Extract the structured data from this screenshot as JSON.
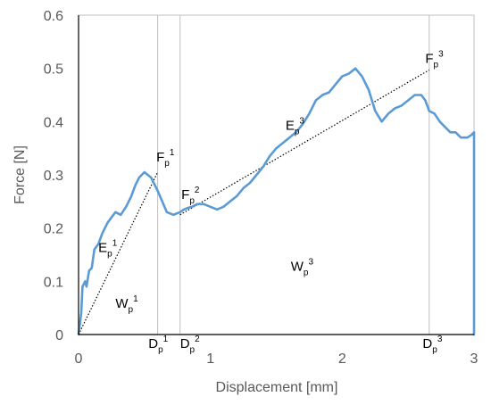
{
  "chart_data": {
    "type": "line",
    "title": "",
    "xlabel": "Displacement [mm]",
    "ylabel": "Force [N]",
    "xlim": [
      0,
      3
    ],
    "ylim": [
      0,
      0.6
    ],
    "x_ticks": [
      "0",
      "1",
      "2",
      "3"
    ],
    "y_ticks": [
      "0",
      "0.1",
      "0.2",
      "0.3",
      "0.4",
      "0.5",
      "0.6"
    ],
    "grid": false,
    "line_color": "#5b9bd5",
    "series": [
      {
        "x": [
          0.0,
          0.02,
          0.03,
          0.05,
          0.06,
          0.08,
          0.1,
          0.12,
          0.15,
          0.18,
          0.2,
          0.22,
          0.25,
          0.28,
          0.32,
          0.36,
          0.4,
          0.43,
          0.46,
          0.5,
          0.55,
          0.6,
          0.67,
          0.72,
          0.77,
          0.8,
          0.83,
          0.86,
          0.9,
          0.95,
          1.0,
          1.05,
          1.1,
          1.15,
          1.2,
          1.25,
          1.3,
          1.35,
          1.4,
          1.45,
          1.5,
          1.55,
          1.6,
          1.65,
          1.7,
          1.75,
          1.8,
          1.85,
          1.9,
          1.95,
          2.0,
          2.05,
          2.1,
          2.15,
          2.2,
          2.25,
          2.3,
          2.35,
          2.4,
          2.45,
          2.5,
          2.55,
          2.6,
          2.63,
          2.66,
          2.7,
          2.74,
          2.78,
          2.82,
          2.86,
          2.9,
          2.95,
          2.98,
          3.0,
          3.0
        ],
        "y": [
          0.0,
          0.04,
          0.09,
          0.1,
          0.09,
          0.12,
          0.125,
          0.16,
          0.17,
          0.19,
          0.2,
          0.21,
          0.22,
          0.23,
          0.225,
          0.24,
          0.26,
          0.28,
          0.295,
          0.305,
          0.295,
          0.27,
          0.23,
          0.225,
          0.23,
          0.235,
          0.238,
          0.24,
          0.245,
          0.245,
          0.24,
          0.235,
          0.24,
          0.25,
          0.26,
          0.275,
          0.285,
          0.3,
          0.315,
          0.335,
          0.35,
          0.36,
          0.37,
          0.38,
          0.395,
          0.415,
          0.44,
          0.45,
          0.455,
          0.47,
          0.485,
          0.49,
          0.5,
          0.485,
          0.46,
          0.42,
          0.4,
          0.415,
          0.425,
          0.43,
          0.44,
          0.45,
          0.45,
          0.44,
          0.42,
          0.415,
          0.4,
          0.39,
          0.38,
          0.38,
          0.37,
          0.37,
          0.375,
          0.38,
          0.0
        ]
      }
    ],
    "secant_lines": [
      {
        "x": [
          0.0,
          0.6
        ],
        "y": [
          0.0,
          0.305
        ]
      },
      {
        "x": [
          0.77,
          2.66
        ],
        "y": [
          0.225,
          0.497
        ]
      }
    ],
    "vertical_markers": [
      0.6,
      0.77,
      2.66
    ],
    "annotations": [
      {
        "base": "F",
        "sub": "p",
        "sup": "1",
        "x": 0.59,
        "y": 0.325
      },
      {
        "base": "F",
        "sub": "p",
        "sup": "2",
        "x": 0.78,
        "y": 0.255
      },
      {
        "base": "F",
        "sub": "p",
        "sup": "3",
        "x": 2.63,
        "y": 0.51
      },
      {
        "base": "E",
        "sub": "p",
        "sup": "1",
        "x": 0.15,
        "y": 0.155
      },
      {
        "base": "E",
        "sub": "p",
        "sup": "3",
        "x": 1.57,
        "y": 0.385
      },
      {
        "base": "W",
        "sub": "p",
        "sup": "1",
        "x": 0.28,
        "y": 0.05
      },
      {
        "base": "W",
        "sub": "p",
        "sup": "3",
        "x": 1.61,
        "y": 0.12
      },
      {
        "base": "D",
        "sub": "p",
        "sup": "1",
        "x": 0.53,
        "y": -0.025
      },
      {
        "base": "D",
        "sub": "p",
        "sup": "2",
        "x": 0.77,
        "y": -0.025
      },
      {
        "base": "D",
        "sub": "p",
        "sup": "3",
        "x": 2.61,
        "y": -0.025
      }
    ]
  }
}
